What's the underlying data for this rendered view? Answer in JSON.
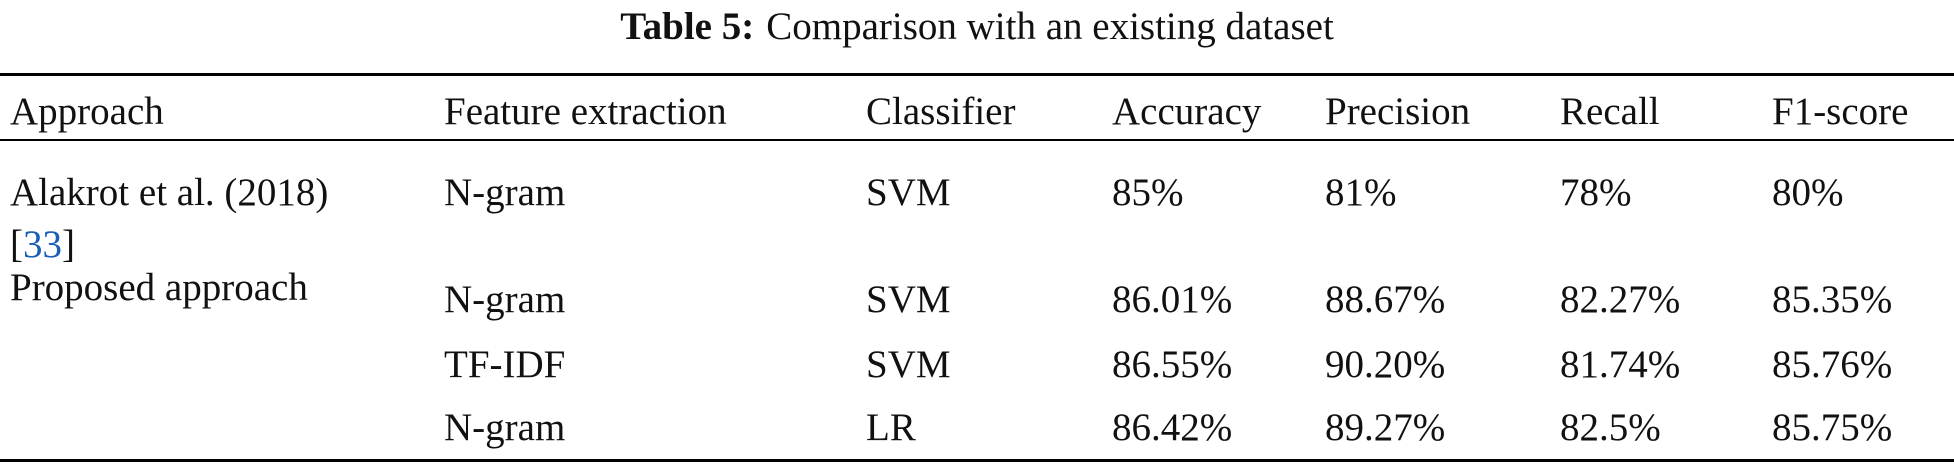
{
  "caption": {
    "label": "Table 5:",
    "text": "Comparison with an existing dataset"
  },
  "table": {
    "header": [
      "Approach",
      "Feature extraction",
      "Classifier",
      "Accuracy",
      "Precision",
      "Recall",
      "F1-score"
    ],
    "groups": [
      {
        "approach": "Alakrot et al. (2018)",
        "citation": [
          "[",
          "33",
          "]"
        ],
        "rows": [
          [
            "N-gram",
            "SVM",
            "85%",
            "81%",
            "78%",
            "80%"
          ]
        ]
      },
      {
        "approach": "Proposed approach",
        "rows": [
          [
            "N-gram",
            "SVM",
            "86.01%",
            "88.67%",
            "82.27%",
            "85.35%"
          ],
          [
            "TF-IDF",
            "SVM",
            "86.55%",
            "90.20%",
            "81.74%",
            "85.76%"
          ],
          [
            "N-gram",
            "LR",
            "86.42%",
            "89.27%",
            "82.5%",
            "85.75%"
          ]
        ]
      }
    ]
  }
}
